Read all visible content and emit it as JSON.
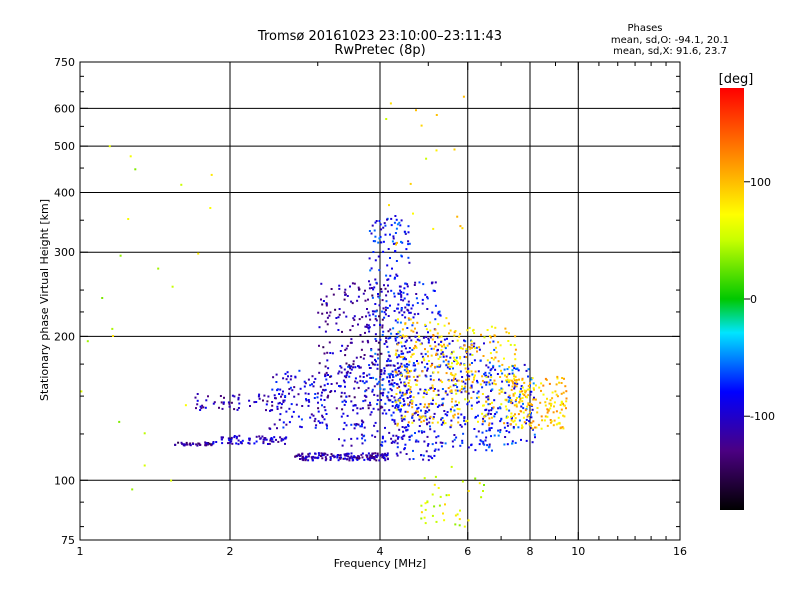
{
  "chart_data": {
    "type": "scatter",
    "title": "Tromsø 20161023 23:10:00–23:11:43",
    "subtitle": "RwPretec (8p)",
    "stats": {
      "heading": "Phases",
      "line1": "mean, sd,O: -94.1, 20.1",
      "line2": "mean, sd,X:  91.6, 23.7"
    },
    "xlabel": "Frequency [MHz]",
    "ylabel": "Stationary phase Virtual Height [km]",
    "x_scale": "log",
    "y_scale": "log",
    "xlim": [
      1,
      16
    ],
    "ylim": [
      75,
      750
    ],
    "x_ticks": [
      {
        "value": 1,
        "label": "1"
      },
      {
        "value": 2,
        "label": "2"
      },
      {
        "value": 4,
        "label": "4"
      },
      {
        "value": 6,
        "label": "6"
      },
      {
        "value": 8,
        "label": "8"
      },
      {
        "value": 10,
        "label": "10"
      },
      {
        "value": 16,
        "label": "16"
      }
    ],
    "x_grid": [
      2,
      4,
      6,
      8,
      10
    ],
    "y_ticks": [
      {
        "value": 75,
        "label": "75"
      },
      {
        "value": 100,
        "label": "100"
      },
      {
        "value": 200,
        "label": "200"
      },
      {
        "value": 300,
        "label": "300"
      },
      {
        "value": 400,
        "label": "400"
      },
      {
        "value": 500,
        "label": "500"
      },
      {
        "value": 600,
        "label": "600"
      },
      {
        "value": 750,
        "label": "750"
      }
    ],
    "y_grid": [
      100,
      200,
      300,
      400,
      500,
      600
    ],
    "grid": true,
    "colorbar": {
      "label": "[deg]",
      "range": [
        -180,
        180
      ],
      "ticks": [
        {
          "value": 100,
          "label": "100"
        },
        {
          "value": 0,
          "label": "0"
        },
        {
          "value": -100,
          "label": "-100"
        }
      ]
    },
    "clusters": [
      {
        "x": [
          1.55,
          1.85
        ],
        "y": [
          118,
          120
        ],
        "phase": -125,
        "count": 40
      },
      {
        "x": [
          1.85,
          2.6
        ],
        "y": [
          119,
          124
        ],
        "phase": -105,
        "count": 70
      },
      {
        "x": [
          1.7,
          2.6
        ],
        "y": [
          140,
          152
        ],
        "phase": -110,
        "count": 60
      },
      {
        "x": [
          2.4,
          3.2
        ],
        "y": [
          128,
          170
        ],
        "phase": -95,
        "count": 110
      },
      {
        "x": [
          2.7,
          4.2
        ],
        "y": [
          110,
          114
        ],
        "phase": -112,
        "count": 160
      },
      {
        "x": [
          3.0,
          4.2
        ],
        "y": [
          140,
          260
        ],
        "phase": -118,
        "count": 220
      },
      {
        "x": [
          3.3,
          4.6
        ],
        "y": [
          118,
          175
        ],
        "phase": -95,
        "count": 180
      },
      {
        "x": [
          3.8,
          4.6
        ],
        "y": [
          140,
          360
        ],
        "phase": -80,
        "count": 220
      },
      {
        "x": [
          4.3,
          5.3
        ],
        "y": [
          110,
          260
        ],
        "phase": -90,
        "count": 260
      },
      {
        "x": [
          4.3,
          5.5
        ],
        "y": [
          130,
          220
        ],
        "phase": 95,
        "count": 170
      },
      {
        "x": [
          5.3,
          6.8
        ],
        "y": [
          115,
          200
        ],
        "phase": -85,
        "count": 180
      },
      {
        "x": [
          5.5,
          7.5
        ],
        "y": [
          130,
          210
        ],
        "phase": 90,
        "count": 200
      },
      {
        "x": [
          6.5,
          8.2
        ],
        "y": [
          118,
          175
        ],
        "phase": -75,
        "count": 120
      },
      {
        "x": [
          7.2,
          9.5
        ],
        "y": [
          128,
          165
        ],
        "phase": 95,
        "count": 170
      },
      {
        "x": [
          4.8,
          6.5
        ],
        "y": [
          80,
          110
        ],
        "phase": 60,
        "count": 40
      },
      {
        "x": [
          1.0,
          1.9
        ],
        "y": [
          90,
          600
        ],
        "phase": 60,
        "count": 22
      },
      {
        "x": [
          4.0,
          6.0
        ],
        "y": [
          300,
          650
        ],
        "phase": 80,
        "count": 18
      }
    ]
  }
}
